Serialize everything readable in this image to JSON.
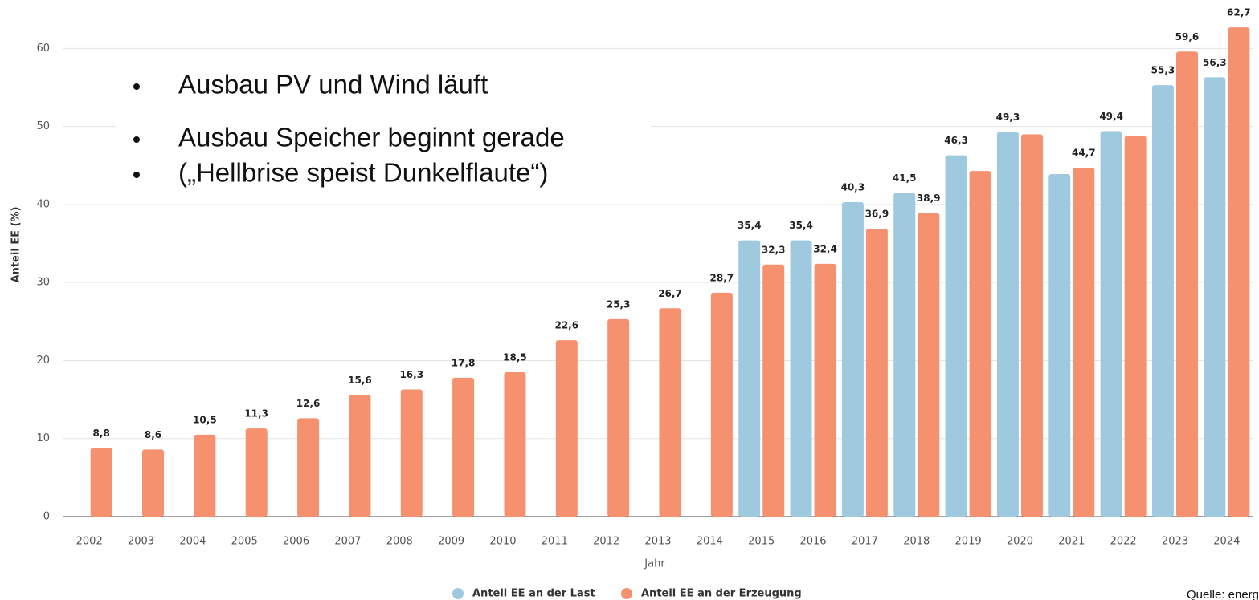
{
  "chart_data": {
    "type": "bar",
    "y_label": "Anteil EE (%)",
    "x_label": "Jahr",
    "annotations": [
      "Ausbau PV und Wind läuft",
      "Ausbau Speicher beginnt gerade",
      "(„Hellbrise speist Dunkelflaute“)"
    ],
    "source": "Quelle: energ",
    "categories": [
      "2002",
      "2003",
      "2004",
      "2005",
      "2006",
      "2007",
      "2008",
      "2009",
      "2010",
      "2011",
      "2012",
      "2013",
      "2014",
      "2015",
      "2016",
      "2017",
      "2018",
      "2019",
      "2020",
      "2021",
      "2022",
      "2023",
      "2024"
    ],
    "series": [
      {
        "name": "Anteil EE an der Last",
        "color": "#9fc9de",
        "values": [
          null,
          null,
          null,
          null,
          null,
          null,
          null,
          null,
          null,
          null,
          null,
          null,
          null,
          35.4,
          35.4,
          40.3,
          41.5,
          46.3,
          49.3,
          43.9,
          49.4,
          55.3,
          56.3
        ],
        "value_labels": [
          null,
          null,
          null,
          null,
          null,
          null,
          null,
          null,
          null,
          null,
          null,
          null,
          null,
          "35,4",
          "35,4",
          "40,3",
          "41,5",
          "46,3",
          "49,3",
          null,
          "49,4",
          "55,3",
          "56,3"
        ]
      },
      {
        "name": "Anteil EE an der Erzeugung",
        "color": "#f5916f",
        "values": [
          8.8,
          8.6,
          10.5,
          11.3,
          12.6,
          15.6,
          16.3,
          17.8,
          18.5,
          22.6,
          25.3,
          26.7,
          28.7,
          32.3,
          32.4,
          36.9,
          38.9,
          44.3,
          49.0,
          44.7,
          48.8,
          59.6,
          62.7
        ],
        "value_labels": [
          "8,8",
          "8,6",
          "10,5",
          "11,3",
          "12,6",
          "15,6",
          "16,3",
          "17,8",
          "18,5",
          "22,6",
          "25,3",
          "26,7",
          "28,7",
          "32,3",
          "32,4",
          "36,9",
          "38,9",
          null,
          null,
          "44,7",
          null,
          "59,6",
          "62,7"
        ]
      }
    ],
    "ylim": [
      0,
      66
    ],
    "yticks": [
      0,
      10,
      20,
      30,
      40,
      50,
      60
    ],
    "grid": true
  }
}
